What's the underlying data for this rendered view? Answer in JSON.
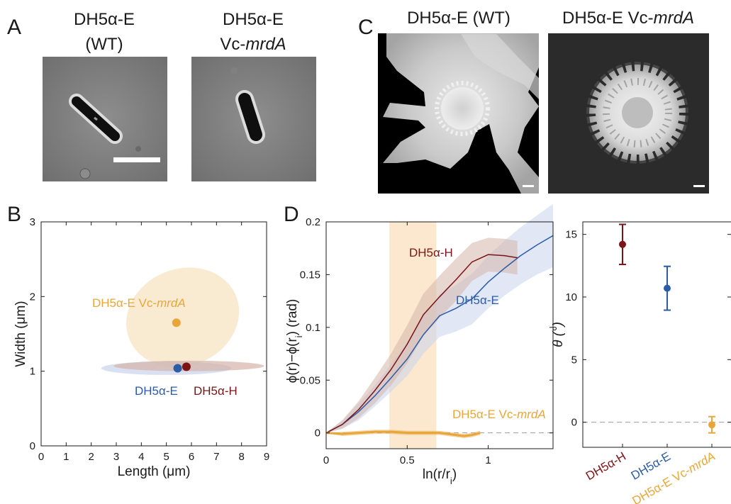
{
  "colors": {
    "H": "#7b1417",
    "E": "#2a5ca8",
    "V": "#e8a63a",
    "V_light": "#f7e4c3",
    "E_light": "#c9d3ec",
    "H_light": "#d6b4aa",
    "band": "#fbe8ce",
    "ink": "#1a1a1a",
    "grey": "#9a9a9a"
  },
  "panels": {
    "A": {
      "letter": "A",
      "left_title": [
        "DH5α-E",
        "(WT)"
      ],
      "right_title_1": "DH5α-E",
      "right_title_2_prefix": "Vc-",
      "right_title_2_italic": "mrdA"
    },
    "C": {
      "letter": "C",
      "left_title": "DH5α-E (WT)",
      "right_title_prefix": "DH5α-E Vc-",
      "right_title_italic": "mrdA"
    },
    "B": {
      "letter": "B"
    },
    "D": {
      "letter": "D"
    }
  },
  "chart_data": [
    {
      "id": "B",
      "type": "scatter",
      "xlabel": "Length (μm)",
      "ylabel": "Width (μm)",
      "xlim": [
        0,
        9
      ],
      "ylim": [
        0,
        3
      ],
      "xticks": [
        "0",
        "1",
        "2",
        "3",
        "4",
        "5",
        "6",
        "7",
        "8",
        "9"
      ],
      "yticks": [
        "0",
        "1",
        "2",
        "3"
      ],
      "series": [
        {
          "name": "DH5α-E Vc-",
          "name_italic": "mrdA",
          "x": 5.4,
          "y": 1.65,
          "color": "V",
          "ellipse": {
            "cx": 5.65,
            "cy": 1.72,
            "rx": 2.3,
            "ry": 0.65,
            "rotate": -22,
            "color": "V_light"
          }
        },
        {
          "name": "DH5α-E",
          "x": 5.45,
          "y": 1.04,
          "color": "E",
          "ellipse": {
            "cx": 5.0,
            "cy": 1.04,
            "rx": 2.6,
            "ry": 0.09,
            "rotate": 0,
            "color": "E_light"
          }
        },
        {
          "name": "DH5α-H",
          "x": 5.8,
          "y": 1.06,
          "color": "H",
          "ellipse": {
            "cx": 5.9,
            "cy": 1.07,
            "rx": 3.0,
            "ry": 0.07,
            "rotate": 0,
            "color": "H_light"
          }
        }
      ]
    },
    {
      "id": "D",
      "type": "line",
      "xlabel": "ln(r/r",
      "xlabel_sub": "i",
      "ylabel": "ϕ(r)−ϕ(r",
      "ylabel_sub": "i",
      "ylabel_tail": ") (rad)",
      "xlim": [
        0,
        1.4
      ],
      "ylim": [
        -0.015,
        0.2
      ],
      "xticks": [
        "0",
        "0.5",
        "1"
      ],
      "yticks": [
        "0",
        "0.05",
        "0.1",
        "0.15",
        "0.2"
      ],
      "shaded_band": [
        0.39,
        0.68
      ],
      "reference_line": 0,
      "series": [
        {
          "name": "DH5α-H",
          "color": "H",
          "band_color": "H_light",
          "x": [
            0,
            0.1,
            0.2,
            0.3,
            0.4,
            0.5,
            0.6,
            0.7,
            0.8,
            0.9,
            1.0,
            1.1,
            1.18
          ],
          "y": [
            0,
            0.008,
            0.022,
            0.04,
            0.06,
            0.084,
            0.112,
            0.129,
            0.145,
            0.162,
            0.169,
            0.168,
            0.166
          ],
          "err": [
            0,
            0.004,
            0.008,
            0.012,
            0.015,
            0.018,
            0.02,
            0.02,
            0.02,
            0.018,
            0.016,
            0.016,
            0.016
          ]
        },
        {
          "name": "DH5α-E",
          "color": "E",
          "band_color": "E_light",
          "x": [
            0,
            0.1,
            0.2,
            0.3,
            0.4,
            0.5,
            0.6,
            0.7,
            0.8,
            0.9,
            1.0,
            1.1,
            1.2,
            1.3,
            1.4
          ],
          "y": [
            0,
            0.008,
            0.02,
            0.035,
            0.052,
            0.07,
            0.093,
            0.111,
            0.118,
            0.127,
            0.143,
            0.156,
            0.168,
            0.178,
            0.187
          ],
          "err": [
            0,
            0.004,
            0.008,
            0.01,
            0.013,
            0.016,
            0.018,
            0.02,
            0.022,
            0.024,
            0.025,
            0.026,
            0.027,
            0.028,
            0.03
          ]
        },
        {
          "name": "DH5α-E Vc-",
          "name_italic": "mrdA",
          "color": "V",
          "band_color": "V",
          "x": [
            0,
            0.1,
            0.2,
            0.3,
            0.4,
            0.5,
            0.6,
            0.7,
            0.8,
            0.85,
            0.9,
            0.95
          ],
          "y": [
            0,
            -0.001,
            0,
            0.001,
            0.001,
            0,
            0,
            0,
            -0.002,
            -0.003,
            -0.002,
            0
          ],
          "err": [
            0,
            0.002,
            0.002,
            0.002,
            0.002,
            0.002,
            0.002,
            0.002,
            0.002,
            0.002,
            0.002,
            0.002
          ]
        }
      ]
    },
    {
      "id": "theta",
      "type": "scatter",
      "ylabel": "θ (°)",
      "ylim": [
        -2,
        16
      ],
      "yticks": [
        "0",
        "5",
        "10",
        "15"
      ],
      "categories": [
        "DH5α-H",
        "DH5α-E",
        "DH5α-E Vc-mrdA"
      ],
      "category_prefix": [
        "DH5α-H",
        "DH5α-E",
        "DH5α-E Vc-"
      ],
      "category_italic": [
        "",
        "",
        "mrdA"
      ],
      "category_colors": [
        "H",
        "E",
        "V"
      ],
      "values": [
        14.2,
        10.7,
        -0.2
      ],
      "errors": [
        1.6,
        1.75,
        0.65
      ],
      "reference_line": 0
    }
  ]
}
